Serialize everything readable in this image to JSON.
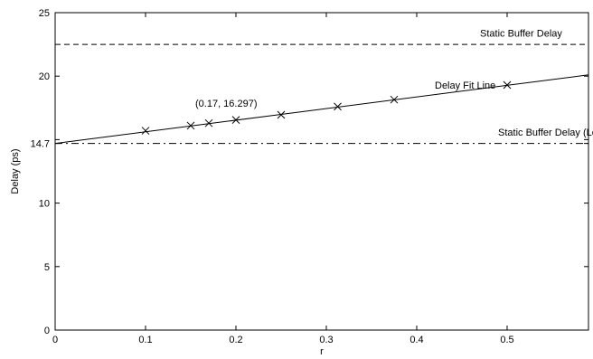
{
  "chart_data": {
    "type": "line",
    "title": "",
    "xlabel": "r",
    "ylabel": "Delay (ps)",
    "xlim": [
      0,
      0.59
    ],
    "ylim": [
      0,
      25
    ],
    "x_ticks": [
      0,
      0.1,
      0.2,
      0.3,
      0.4,
      0.5
    ],
    "x_tick_labels": [
      "0",
      "0.1",
      "0.2",
      "0.3",
      "0.4",
      "0.5"
    ],
    "y_ticks": [
      0,
      5,
      10,
      14.7,
      15,
      20,
      25
    ],
    "y_tick_labels": [
      "0",
      "5",
      "10",
      "14.7",
      "",
      "20",
      "25"
    ],
    "grid": false,
    "series": [
      {
        "name": "Delay Fit Line",
        "style": "solid",
        "x": [
          0,
          0.59
        ],
        "y": [
          14.7,
          20.1
        ]
      },
      {
        "style": "markers",
        "marker": "x",
        "x": [
          0.1,
          0.15,
          0.17,
          0.2,
          0.25,
          0.3125,
          0.375,
          0.5
        ],
        "y": [
          15.7,
          16.1,
          16.297,
          16.55,
          16.95,
          17.6,
          18.15,
          19.3
        ]
      },
      {
        "name": "Static Buffer Delay",
        "style": "dashed",
        "x": [
          0,
          0.59
        ],
        "y": [
          22.5,
          22.5
        ]
      },
      {
        "name": "Static Buffer Delay (Low-Vt)",
        "style": "dashdot",
        "x": [
          0,
          0.59
        ],
        "y": [
          14.7,
          14.7
        ]
      }
    ],
    "annotations": [
      {
        "text": "Static Buffer Delay",
        "x": 0.47,
        "y": 23.1
      },
      {
        "text": "Delay Fit Line",
        "x": 0.42,
        "y": 19.0
      },
      {
        "text": "(0.17, 16.297)",
        "x": 0.155,
        "y": 17.6
      },
      {
        "text": "Static Buffer Delay (Low-Vt)",
        "x": 0.49,
        "y": 15.3
      }
    ]
  }
}
